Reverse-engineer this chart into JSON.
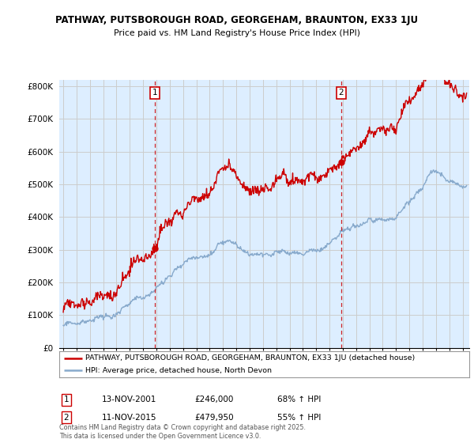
{
  "title1": "PATHWAY, PUTSBOROUGH ROAD, GEORGEHAM, BRAUNTON, EX33 1JU",
  "title2": "Price paid vs. HM Land Registry's House Price Index (HPI)",
  "ylabel_values": [
    "£0",
    "£100K",
    "£200K",
    "£300K",
    "£400K",
    "£500K",
    "£600K",
    "£700K",
    "£800K"
  ],
  "y_ticks": [
    0,
    100000,
    200000,
    300000,
    400000,
    500000,
    600000,
    700000,
    800000
  ],
  "ylim": [
    0,
    820000
  ],
  "xlim_start": 1994.7,
  "xlim_end": 2025.5,
  "red_color": "#cc0000",
  "blue_color": "#88aacc",
  "vline_color": "#cc0000",
  "grid_color": "#cccccc",
  "bg_color": "#ffffff",
  "plot_bg_color": "#ddeeff",
  "legend_label_red": "PATHWAY, PUTSBOROUGH ROAD, GEORGEHAM, BRAUNTON, EX33 1JU (detached house)",
  "legend_label_blue": "HPI: Average price, detached house, North Devon",
  "transaction1_date": "13-NOV-2001",
  "transaction1_price": "£246,000",
  "transaction1_hpi": "68% ↑ HPI",
  "transaction1_year": 2001.87,
  "transaction2_date": "11-NOV-2015",
  "transaction2_price": "£479,950",
  "transaction2_hpi": "55% ↑ HPI",
  "transaction2_year": 2015.87,
  "footer": "Contains HM Land Registry data © Crown copyright and database right 2025.\nThis data is licensed under the Open Government Licence v3.0."
}
